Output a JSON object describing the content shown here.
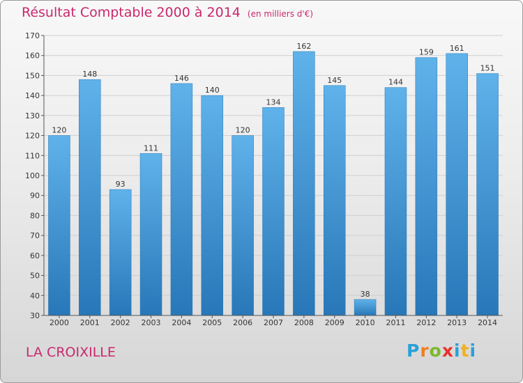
{
  "title": "Résultat Comptable 2000 à 2014",
  "subtitle": "(en milliers d'€)",
  "commune": "LA CROIXILLE",
  "logo": {
    "letters": [
      "P",
      "r",
      "o",
      "x",
      "i",
      "t",
      "i"
    ],
    "colors": [
      "#2aa0d8",
      "#f07d20",
      "#7cb82a",
      "#e8312a",
      "#2aa0d8",
      "#f0b020",
      "#2aa0d8"
    ]
  },
  "colors": {
    "bar": "#3f97d6",
    "bar_light": "#5fb2ea",
    "bar_dark": "#2877b8",
    "accent": "#c8286d"
  },
  "chart_data": {
    "type": "bar",
    "categories": [
      "2000",
      "2001",
      "2002",
      "2003",
      "2004",
      "2005",
      "2006",
      "2007",
      "2008",
      "2009",
      "2010",
      "2011",
      "2012",
      "2013",
      "2014"
    ],
    "values": [
      120,
      148,
      93,
      111,
      146,
      140,
      120,
      134,
      162,
      145,
      38,
      144,
      159,
      161,
      151
    ],
    "title": "Résultat Comptable 2000 à 2014",
    "xlabel": "",
    "ylabel": "",
    "ylim": [
      30,
      170
    ],
    "yticks": [
      30,
      40,
      50,
      60,
      70,
      80,
      90,
      100,
      110,
      120,
      130,
      140,
      150,
      160,
      170
    ],
    "grid": true,
    "data_labels": true
  }
}
